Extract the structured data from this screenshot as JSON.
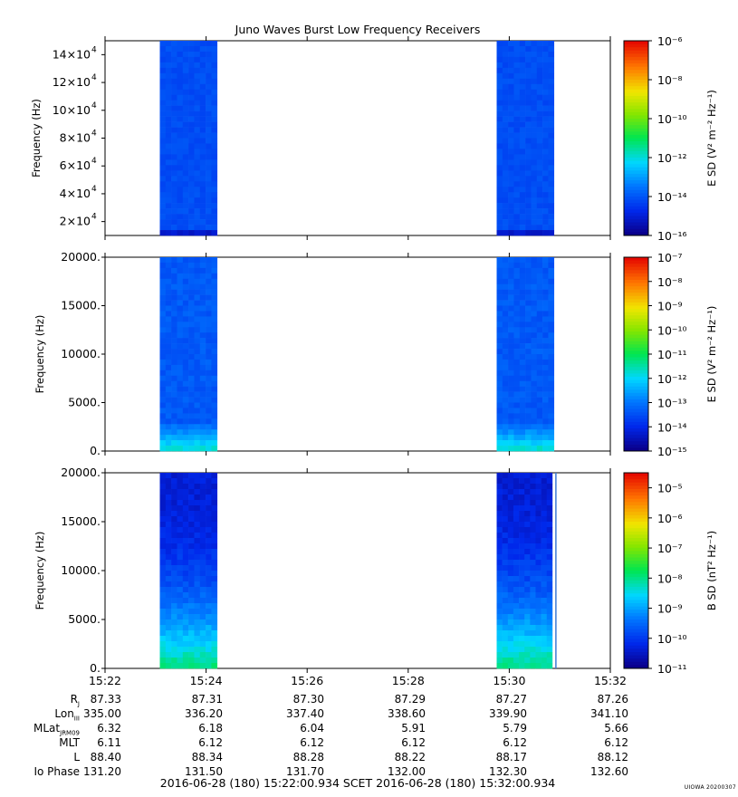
{
  "title": "Juno Waves Burst Low Frequency Receivers",
  "footer": "2016-06-28 (180) 15:22:00.934    SCET    2016-06-28 (180) 15:32:00.934",
  "stamp": "UIOWA 20200307",
  "ephemeris": {
    "labels": [
      "R",
      "Lon",
      "MLat",
      "MLT",
      "L",
      "Io Phase"
    ],
    "label_subscripts": [
      "J",
      "III",
      "JRM09",
      "",
      "",
      ""
    ],
    "rows": [
      [
        "87.33",
        "87.31",
        "87.30",
        "87.29",
        "87.27",
        "87.26"
      ],
      [
        "335.00",
        "336.20",
        "337.40",
        "338.60",
        "339.90",
        "341.10"
      ],
      [
        "6.32",
        "6.18",
        "6.04",
        "5.91",
        "5.79",
        "5.66"
      ],
      [
        "6.11",
        "6.12",
        "6.12",
        "6.12",
        "6.12",
        "6.12"
      ],
      [
        "88.40",
        "88.34",
        "88.28",
        "88.22",
        "88.17",
        "88.12"
      ],
      [
        "131.20",
        "131.50",
        "131.70",
        "132.00",
        "132.30",
        "132.60"
      ]
    ]
  },
  "chart_data": [
    {
      "type": "heatmap",
      "title": "Juno Waves Burst Low Frequency Receivers",
      "xlabel": "",
      "x_ticks": [
        "15:22",
        "15:24",
        "15:26",
        "15:28",
        "15:30",
        "15:32"
      ],
      "x_range": [
        "15:22:00.934",
        "15:32:00.934"
      ],
      "ylabel": "Frequency (Hz)",
      "ylim": [
        10000,
        150000
      ],
      "y_ticks": [
        20000,
        40000,
        60000,
        80000,
        100000,
        120000,
        140000
      ],
      "y_tick_mantissa": [
        "2",
        "4",
        "6",
        "8",
        "10",
        "12",
        "14"
      ],
      "y_tick_exponent": "4",
      "colorbar_label": "E SD (V² m⁻² Hz⁻¹)",
      "colorbar_ticks": [
        "10⁻¹⁶",
        "10⁻¹⁴",
        "10⁻¹²",
        "10⁻¹⁰",
        "10⁻⁸",
        "10⁻⁶"
      ],
      "colorbar_log_range": [
        -16,
        -6
      ],
      "data_intervals": [
        [
          "15:23:06",
          "15:24:14"
        ],
        [
          "15:29:46",
          "15:30:54"
        ]
      ],
      "typical_log_level": -14.2,
      "low_band_log_level": -15.2,
      "grid": false
    },
    {
      "type": "heatmap",
      "xlabel": "",
      "x_ticks": [
        "15:22",
        "15:24",
        "15:26",
        "15:28",
        "15:30",
        "15:32"
      ],
      "ylabel": "Frequency (Hz)",
      "ylim": [
        0,
        20000
      ],
      "y_ticks": [
        "0.",
        "5000.",
        "10000.",
        "15000.",
        "20000."
      ],
      "colorbar_label": "E SD (V² m⁻² Hz⁻¹)",
      "colorbar_ticks": [
        "10⁻¹⁵",
        "10⁻¹⁴",
        "10⁻¹³",
        "10⁻¹²",
        "10⁻¹¹",
        "10⁻¹⁰",
        "10⁻⁹",
        "10⁻⁸",
        "10⁻⁷"
      ],
      "colorbar_log_range": [
        -15,
        -7
      ],
      "data_intervals": [
        [
          "15:23:06",
          "15:24:14"
        ],
        [
          "15:29:46",
          "15:30:54"
        ]
      ],
      "typical_log_level": -13.4,
      "low_band_log_level": -11.8,
      "grid": false
    },
    {
      "type": "heatmap",
      "xlabel": "",
      "x_ticks": [
        "15:22",
        "15:24",
        "15:26",
        "15:28",
        "15:30",
        "15:32"
      ],
      "ylabel": "Frequency (Hz)",
      "ylim": [
        0,
        20000
      ],
      "y_ticks": [
        "0.",
        "5000.",
        "10000.",
        "15000.",
        "20000."
      ],
      "colorbar_label": "B SD (nT² Hz⁻¹)",
      "colorbar_ticks": [
        "10⁻¹¹",
        "10⁻¹⁰",
        "10⁻⁹",
        "10⁻⁸",
        "10⁻⁷",
        "10⁻⁶",
        "10⁻⁵"
      ],
      "colorbar_log_range": [
        -11,
        -4.5
      ],
      "data_intervals": [
        [
          "15:23:06",
          "15:24:14"
        ],
        [
          "15:29:46",
          "15:30:52"
        ]
      ],
      "typical_log_level": -10.4,
      "low_band_log_level": -8.0,
      "grid": false
    }
  ]
}
